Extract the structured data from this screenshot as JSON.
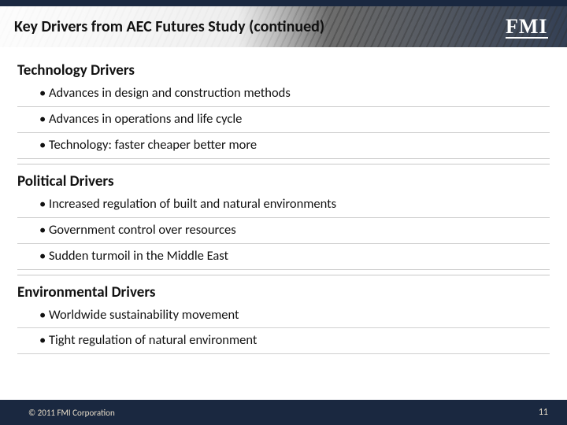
{
  "header": {
    "title": "Key Drivers from AEC Futures Study (continued)",
    "logo_text": "FMI"
  },
  "sections": [
    {
      "heading": "Technology Drivers",
      "bullets": [
        "Advances in design and construction methods",
        "Advances in operations and life cycle",
        "Technology: faster cheaper better more"
      ]
    },
    {
      "heading": "Political Drivers",
      "bullets": [
        "Increased regulation of built and natural environments",
        "Government control over resources",
        "Sudden turmoil in the Middle East"
      ]
    },
    {
      "heading": "Environmental Drivers",
      "bullets": [
        "Worldwide sustainability movement",
        "Tight regulation of natural environment"
      ]
    }
  ],
  "footer": {
    "copyright": "© 2011 FMI Corporation",
    "page_number": "11"
  },
  "colors": {
    "navy": "#1a2840",
    "text": "#111111",
    "divider": "#d0d0d0",
    "footer_text": "#e6dcc8",
    "background": "#ffffff"
  }
}
